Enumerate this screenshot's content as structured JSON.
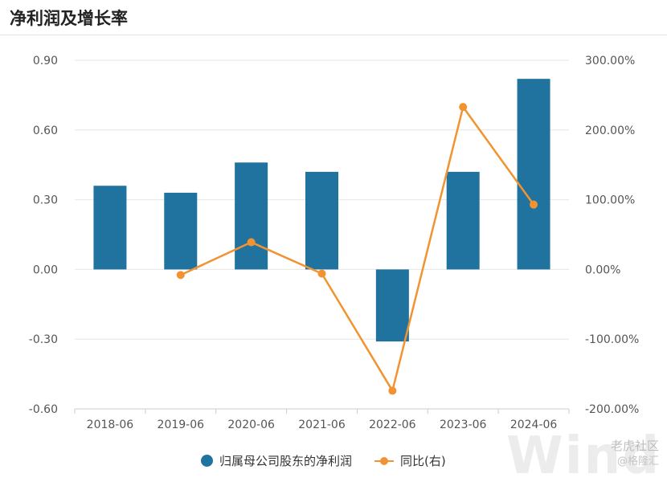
{
  "header": {
    "title": "净利润及增长率"
  },
  "chart_data": {
    "type": "bar",
    "categories": [
      "2018-06",
      "2019-06",
      "2020-06",
      "2021-06",
      "2022-06",
      "2023-06",
      "2024-06"
    ],
    "series": [
      {
        "name": "归属母公司股东的净利润",
        "type": "bar",
        "axis": "left",
        "values": [
          0.36,
          0.33,
          0.46,
          0.42,
          -0.31,
          0.42,
          0.82
        ]
      },
      {
        "name": "同比(右)",
        "type": "line",
        "axis": "right",
        "values": [
          null,
          -8.0,
          39.0,
          -6.0,
          -174.0,
          233.0,
          93.0
        ]
      }
    ],
    "y_left": {
      "min": -0.6,
      "max": 0.9,
      "ticks": [
        "0.90",
        "0.60",
        "0.30",
        "0.00",
        "-0.30",
        "-0.60"
      ]
    },
    "y_right": {
      "min": -200,
      "max": 300,
      "ticks": [
        "300.00%",
        "200.00%",
        "100.00%",
        "0.00%",
        "-100.00%",
        "-200.00%"
      ]
    },
    "grid": "horizontal",
    "legend_position": "bottom-center",
    "colors": {
      "bar": "#21739f",
      "line": "#f29331",
      "grid": "#e6e6e6",
      "axis": "#cccccc"
    }
  },
  "watermark": {
    "text": "Wind",
    "badge": "老虎社区",
    "badge_sub": "@格隆汇"
  }
}
